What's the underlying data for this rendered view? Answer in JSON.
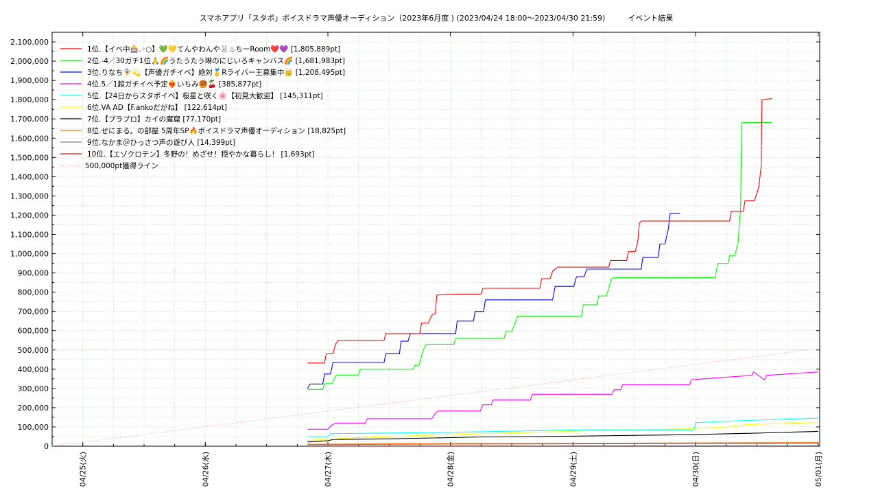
{
  "chart_data": {
    "type": "line",
    "title": "スマホアプリ「スタポ」ボイスドラマ声優オーディション（2023年6月度 ) (2023/04/24 18:00～2023/04/30 21:59)　　　イベント結果",
    "xlabel": "",
    "ylabel": "",
    "ylim": [
      0,
      2150000
    ],
    "xlim": [
      "04/24 18:00",
      "05/01 00:18"
    ],
    "x_ticks": [
      "04/25(火)",
      "04/26(水)",
      "04/27(木)",
      "04/28(金)",
      "04/29(土)",
      "04/30(日)",
      "05/01(月)"
    ],
    "y_ticks": [
      "0",
      "100,000",
      "200,000",
      "300,000",
      "400,000",
      "500,000",
      "600,000",
      "700,000",
      "800,000",
      "900,000",
      "1,000,000",
      "1,100,000",
      "1,200,000",
      "1,300,000",
      "1,400,000",
      "1,500,000",
      "1,600,000",
      "1,700,000",
      "1,800,000",
      "1,900,000",
      "2,000,000",
      "2,100,000"
    ],
    "grid": true,
    "legend_position": "top-left",
    "series": [
      {
        "name": "1位.【イベ中🎰.◦○】💚💛てんやわんや🐰♨ちーRoom❤️💜 [1,805,889pt]",
        "color": "#ff0000",
        "points": [
          [
            "04/26 20:00",
            432000
          ],
          [
            "04/26 23:20",
            432000
          ],
          [
            "04/26 23:40",
            480000
          ],
          [
            "04/27 01:00",
            480000
          ],
          [
            "04/27 01:30",
            530000
          ],
          [
            "04/27 02:00",
            550000
          ],
          [
            "04/27 11:00",
            550000
          ],
          [
            "04/27 11:20",
            585000
          ],
          [
            "04/27 18:00",
            585000
          ],
          [
            "04/27 18:20",
            640000
          ],
          [
            "04/27 19:40",
            640000
          ],
          [
            "04/27 20:20",
            680000
          ],
          [
            "04/27 21:00",
            690000
          ],
          [
            "04/27 21:20",
            785000
          ],
          [
            "04/28 01:30",
            790000
          ],
          [
            "04/28 06:00",
            790000
          ],
          [
            "04/28 06:20",
            820000
          ],
          [
            "04/28 17:30",
            820000
          ],
          [
            "04/28 17:50",
            870000
          ],
          [
            "04/28 19:30",
            870000
          ],
          [
            "04/28 20:00",
            910000
          ],
          [
            "04/28 21:00",
            930000
          ],
          [
            "04/29 07:00",
            930000
          ],
          [
            "04/29 07:20",
            965000
          ],
          [
            "04/29 10:30",
            965000
          ],
          [
            "04/29 10:50",
            1010000
          ],
          [
            "04/29 12:10",
            1010000
          ],
          [
            "04/29 12:40",
            1060000
          ],
          [
            "04/29 13:00",
            1160000
          ],
          [
            "04/29 13:30",
            1170000
          ],
          [
            "04/30 06:40",
            1170000
          ],
          [
            "04/30 07:00",
            1220000
          ],
          [
            "04/30 09:20",
            1220000
          ],
          [
            "04/30 09:40",
            1275000
          ],
          [
            "04/30 11:30",
            1275000
          ],
          [
            "04/30 12:20",
            1340000
          ],
          [
            "04/30 12:50",
            1450000
          ],
          [
            "04/30 13:00",
            1800000
          ],
          [
            "04/30 15:00",
            1805889
          ]
        ]
      },
      {
        "name": "2位.-4／30ガチ1位🙏🌈うたうたう琳のにじいろキャンバス🌈 [1,681,983pt]",
        "color": "#00ff00",
        "points": [
          [
            "04/26 20:00",
            295000
          ],
          [
            "04/26 23:00",
            295000
          ],
          [
            "04/26 23:20",
            325000
          ],
          [
            "04/27 00:50",
            325000
          ],
          [
            "04/27 01:30",
            365000
          ],
          [
            "04/27 02:00",
            370000
          ],
          [
            "04/27 06:00",
            370000
          ],
          [
            "04/27 06:20",
            400000
          ],
          [
            "04/27 16:40",
            400000
          ],
          [
            "04/27 17:00",
            420000
          ],
          [
            "04/27 17:50",
            420000
          ],
          [
            "04/27 18:40",
            500000
          ],
          [
            "04/27 19:10",
            525000
          ],
          [
            "04/27 19:30",
            530000
          ],
          [
            "04/28 00:40",
            530000
          ],
          [
            "04/28 01:00",
            560000
          ],
          [
            "04/28 10:30",
            560000
          ],
          [
            "04/28 10:50",
            595000
          ],
          [
            "04/28 12:00",
            595000
          ],
          [
            "04/28 12:40",
            640000
          ],
          [
            "04/28 13:10",
            675000
          ],
          [
            "04/29 01:40",
            675000
          ],
          [
            "04/29 02:00",
            735000
          ],
          [
            "04/29 04:40",
            735000
          ],
          [
            "04/29 05:00",
            780000
          ],
          [
            "04/29 06:30",
            780000
          ],
          [
            "04/29 07:00",
            820000
          ],
          [
            "04/29 07:30",
            870000
          ],
          [
            "04/29 08:00",
            875000
          ],
          [
            "04/30 03:50",
            875000
          ],
          [
            "04/30 04:20",
            950000
          ],
          [
            "04/30 06:20",
            950000
          ],
          [
            "04/30 06:40",
            990000
          ],
          [
            "04/30 07:40",
            990000
          ],
          [
            "04/30 08:20",
            1060000
          ],
          [
            "04/30 08:50",
            1250000
          ],
          [
            "04/30 09:00",
            1680000
          ],
          [
            "04/30 15:00",
            1681983
          ]
        ]
      },
      {
        "name": "3位.りなち🧚‍♀️💫【声優ガチイベ】絶対🥇Rライバー王募集中👑 [1,208,495pt]",
        "color": "#0000ff",
        "points": [
          [
            "04/26 20:00",
            300000
          ],
          [
            "04/26 20:30",
            323000
          ],
          [
            "04/26 23:00",
            323000
          ],
          [
            "04/26 23:20",
            375000
          ],
          [
            "04/27 00:30",
            375000
          ],
          [
            "04/27 01:00",
            435000
          ],
          [
            "04/27 11:00",
            435000
          ],
          [
            "04/27 11:20",
            480000
          ],
          [
            "04/27 14:00",
            480000
          ],
          [
            "04/27 14:20",
            545000
          ],
          [
            "04/27 15:40",
            545000
          ],
          [
            "04/27 16:10",
            585000
          ],
          [
            "04/28 01:00",
            585000
          ],
          [
            "04/28 01:20",
            650000
          ],
          [
            "04/28 04:30",
            650000
          ],
          [
            "04/28 04:50",
            700000
          ],
          [
            "04/28 06:30",
            700000
          ],
          [
            "04/28 06:50",
            760000
          ],
          [
            "04/28 20:00",
            760000
          ],
          [
            "04/28 20:30",
            830000
          ],
          [
            "04/29 00:10",
            830000
          ],
          [
            "04/29 00:40",
            880000
          ],
          [
            "04/29 02:10",
            880000
          ],
          [
            "04/29 02:40",
            920000
          ],
          [
            "04/29 13:20",
            920000
          ],
          [
            "04/29 13:40",
            980000
          ],
          [
            "04/29 16:40",
            980000
          ],
          [
            "04/29 17:00",
            1050000
          ],
          [
            "04/29 18:00",
            1050000
          ],
          [
            "04/29 18:40",
            1130000
          ],
          [
            "04/29 19:00",
            1208495
          ],
          [
            "04/29 21:00",
            1208495
          ]
        ]
      },
      {
        "name": "4位.5／1超ガチイベ予定❤️‍🔥いちみ🥮🍒 [385,877pt]",
        "color": "#ff00ff",
        "points": [
          [
            "04/26 20:00",
            88000
          ],
          [
            "04/27 00:00",
            88000
          ],
          [
            "04/27 00:30",
            105000
          ],
          [
            "04/27 01:30",
            120000
          ],
          [
            "04/27 07:20",
            120000
          ],
          [
            "04/27 07:40",
            143000
          ],
          [
            "04/27 20:20",
            143000
          ],
          [
            "04/27 21:00",
            170000
          ],
          [
            "04/27 21:40",
            183000
          ],
          [
            "04/28 05:50",
            183000
          ],
          [
            "04/28 06:20",
            215000
          ],
          [
            "04/28 08:00",
            215000
          ],
          [
            "04/28 08:20",
            240000
          ],
          [
            "04/28 15:40",
            240000
          ],
          [
            "04/28 16:00",
            270000
          ],
          [
            "04/29 07:40",
            270000
          ],
          [
            "04/29 08:00",
            293000
          ],
          [
            "04/29 09:20",
            293000
          ],
          [
            "04/29 09:40",
            320000
          ],
          [
            "04/29 22:50",
            320000
          ],
          [
            "04/29 23:10",
            345000
          ],
          [
            "04/30 13:30",
            345000
          ],
          [
            "04/30 13:50",
            368000
          ],
          [
            "04/30 11:00",
            368000
          ],
          [
            "04/30 11:20",
            385877
          ],
          [
            "04/30 23:59",
            385877
          ]
        ]
      },
      {
        "name": "5位.【24日からスタポイベ】桜星と咲く🌸【初見大歓迎】 [145,311pt]",
        "color": "#00ffff",
        "points": [
          [
            "04/26 20:00",
            50000
          ],
          [
            "04/27 00:00",
            50000
          ],
          [
            "04/27 00:30",
            65000
          ],
          [
            "04/28 00:00",
            72000
          ],
          [
            "04/29 02:00",
            85000
          ],
          [
            "04/29 23:40",
            85000
          ],
          [
            "04/30 00:00",
            122000
          ],
          [
            "04/30 08:00",
            132000
          ],
          [
            "04/30 23:59",
            145311
          ]
        ]
      },
      {
        "name": "6位.VA AD【F.ankoだがね】 [122,614pt]",
        "color": "#ffff00",
        "points": [
          [
            "04/26 20:00",
            30000
          ],
          [
            "04/27 06:00",
            45000
          ],
          [
            "04/28 06:00",
            65000
          ],
          [
            "04/29 06:00",
            82000
          ],
          [
            "04/29 22:00",
            90000
          ],
          [
            "04/30 06:00",
            100000
          ],
          [
            "04/30 10:00",
            112000
          ],
          [
            "04/30 23:59",
            122614
          ]
        ]
      },
      {
        "name": "7位.【プラプロ】カイの魔窟 [77,170pt]",
        "color": "#000000",
        "points": [
          [
            "04/26 20:00",
            22000
          ],
          [
            "04/27 00:00",
            28000
          ],
          [
            "04/27 01:00",
            35000
          ],
          [
            "04/27 12:00",
            38000
          ],
          [
            "04/28 06:00",
            48000
          ],
          [
            "04/29 00:00",
            52000
          ],
          [
            "04/29 23:00",
            60000
          ],
          [
            "04/30 12:00",
            68000
          ],
          [
            "04/30 23:59",
            77170
          ]
        ]
      },
      {
        "name": "8位.ぜにまる。の部屋 5周年SP🔥ボイスドラマ声優オーディション [18,825pt]",
        "color": "#ff6600",
        "points": [
          [
            "04/26 20:00",
            10000
          ],
          [
            "04/28 00:00",
            14000
          ],
          [
            "04/30 00:00",
            17000
          ],
          [
            "04/30 23:59",
            18825
          ]
        ]
      },
      {
        "name": "9位.なかま＠ひっさつ声の遊び人 [14,399pt]",
        "color": "#808080",
        "points": [
          [
            "04/26 20:00",
            8000
          ],
          [
            "04/28 00:00",
            11000
          ],
          [
            "04/30 00:00",
            13500
          ],
          [
            "04/30 23:59",
            14399
          ]
        ]
      },
      {
        "name": "10位.【エゾクロテン】冬野の！めざせ！穏やかな暮らし！ [1,693pt]",
        "color": "#ff0000",
        "points": [
          [
            "04/26 20:00",
            1000
          ],
          [
            "04/30 23:59",
            1693
          ]
        ]
      },
      {
        "name": "500,000pt獲得ライン",
        "color": "#ff8080",
        "dotted": true,
        "points": [
          [
            "04/24 18:00",
            0
          ],
          [
            "04/30 21:59",
            500000
          ]
        ]
      }
    ]
  }
}
